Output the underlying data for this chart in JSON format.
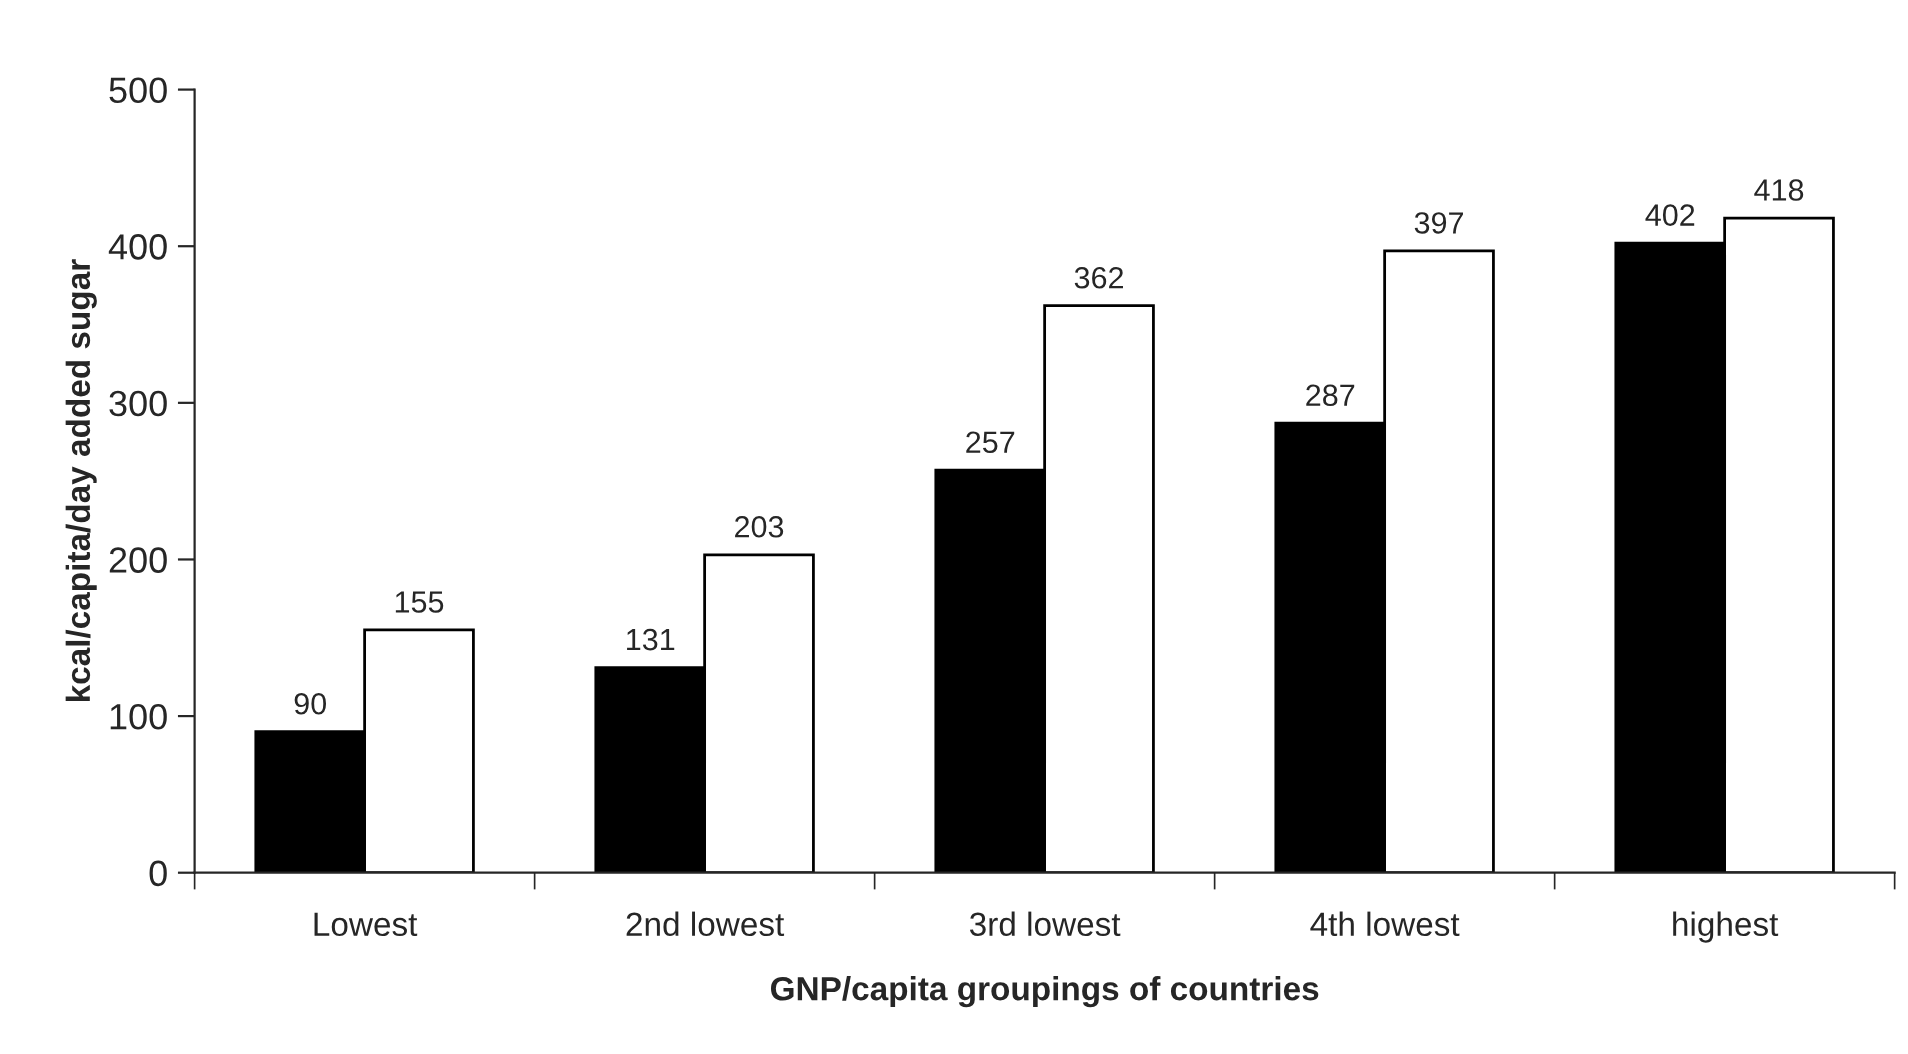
{
  "chart_data": {
    "type": "bar",
    "xlabel": "GNP/capita groupings of countries",
    "ylabel": "kcal/capita/day added sugar",
    "categories": [
      "Lowest",
      "2nd lowest",
      "3rd lowest",
      "4th lowest",
      "highest"
    ],
    "series": [
      {
        "color": "#000000",
        "values": [
          90,
          131,
          257,
          287,
          402
        ]
      },
      {
        "color": "#ffffff",
        "values": [
          155,
          203,
          362,
          397,
          418
        ]
      }
    ],
    "ylim": [
      0,
      500
    ],
    "yticks": [
      0,
      100,
      200,
      300,
      400,
      500
    ],
    "data_labels": true,
    "grid": false,
    "legend": false
  }
}
